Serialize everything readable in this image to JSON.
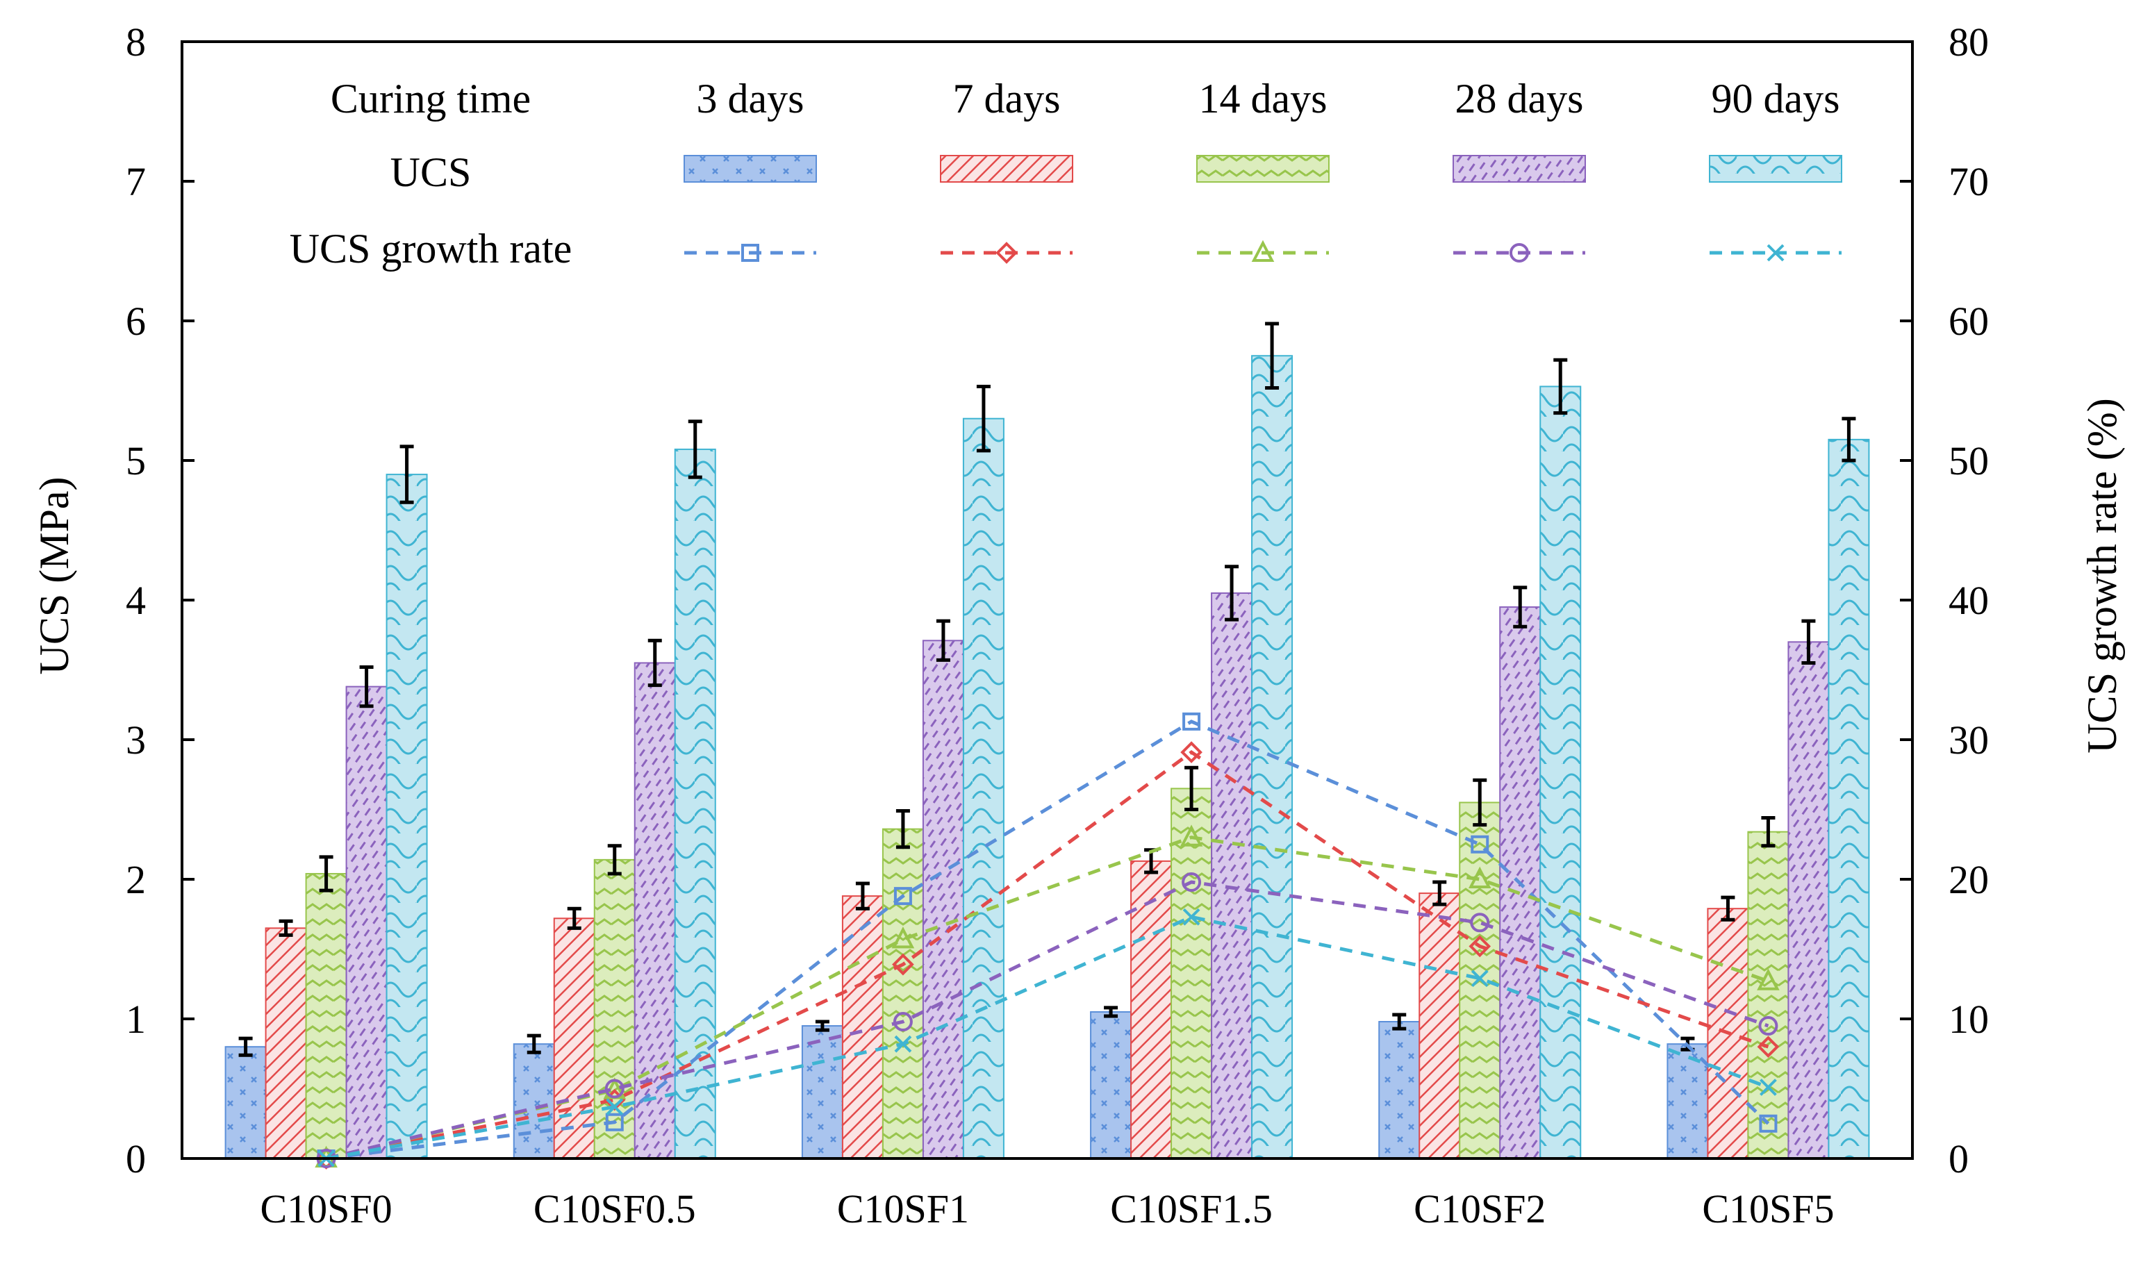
{
  "chart_data": {
    "type": "bar",
    "categories": [
      "C10SF0",
      "C10SF0.5",
      "C10SF1",
      "C10SF1.5",
      "C10SF2",
      "C10SF5"
    ],
    "ylabel": "UCS (MPa)",
    "y2label": "UCS growth rate (%)",
    "ylim": [
      0,
      8
    ],
    "y2lim": [
      0,
      80
    ],
    "yticks": [
      "0",
      "1",
      "2",
      "3",
      "4",
      "5",
      "6",
      "7",
      "8"
    ],
    "y2ticks": [
      "0",
      "10",
      "20",
      "30",
      "40",
      "50",
      "60",
      "70",
      "80"
    ],
    "legend": {
      "header": "Curing time",
      "ucs_label": "UCS",
      "growth_label": "UCS growth rate",
      "position": "top"
    },
    "series": [
      {
        "name": "3 days",
        "color": "#5b8fd9",
        "fill": "#a9c4ee",
        "marker": "square",
        "values": [
          0.8,
          0.82,
          0.95,
          1.05,
          0.98,
          0.82
        ],
        "errors": [
          0.06,
          0.06,
          0.03,
          0.03,
          0.05,
          0.04
        ],
        "growth": [
          0,
          2.6,
          18.8,
          31.3,
          22.5,
          2.5
        ]
      },
      {
        "name": "7 days",
        "color": "#e34a4a",
        "fill": "#f6c8c8",
        "marker": "diamond",
        "values": [
          1.65,
          1.72,
          1.88,
          2.13,
          1.9,
          1.79
        ],
        "errors": [
          0.05,
          0.07,
          0.09,
          0.08,
          0.08,
          0.08
        ],
        "growth": [
          0,
          4.2,
          13.9,
          29.1,
          15.2,
          8.0
        ]
      },
      {
        "name": "14 days",
        "color": "#98c54c",
        "fill": "#dcedbd",
        "marker": "triangle",
        "values": [
          2.04,
          2.14,
          2.36,
          2.65,
          2.55,
          2.34
        ],
        "errors": [
          0.12,
          0.1,
          0.13,
          0.15,
          0.16,
          0.1
        ],
        "growth": [
          0,
          4.9,
          15.7,
          23.0,
          20.0,
          12.7
        ]
      },
      {
        "name": "28 days",
        "color": "#8b62bd",
        "fill": "#d9c9ec",
        "marker": "circle",
        "values": [
          3.38,
          3.55,
          3.71,
          4.05,
          3.95,
          3.7
        ],
        "errors": [
          0.14,
          0.16,
          0.14,
          0.19,
          0.14,
          0.15
        ],
        "growth": [
          0,
          5.0,
          9.8,
          19.8,
          16.9,
          9.5
        ]
      },
      {
        "name": "90 days",
        "color": "#3fb4d2",
        "fill": "#c3e7f1",
        "marker": "x",
        "values": [
          4.9,
          5.08,
          5.3,
          5.75,
          5.53,
          5.15
        ],
        "errors": [
          0.2,
          0.2,
          0.23,
          0.23,
          0.19,
          0.15
        ],
        "growth": [
          0,
          3.7,
          8.2,
          17.3,
          12.9,
          5.1
        ]
      }
    ]
  }
}
